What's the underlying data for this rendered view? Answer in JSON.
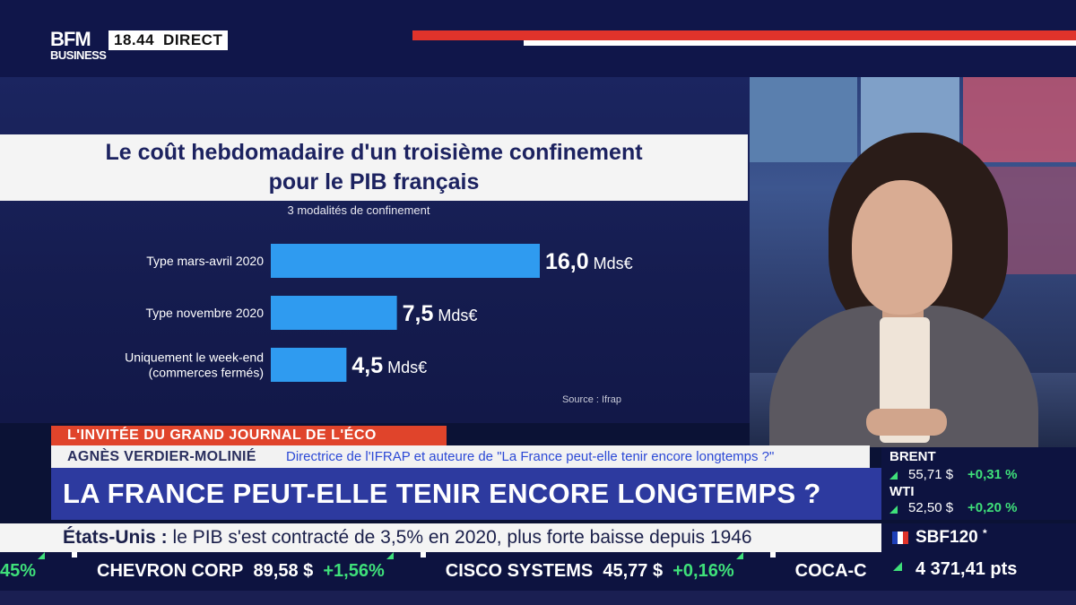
{
  "header": {
    "logo_top": "BFM",
    "logo_bottom": "BUSINESS",
    "time": "18.44",
    "live": "DIRECT"
  },
  "chart_data": {
    "type": "bar",
    "orientation": "horizontal",
    "title_line1": "Le coût hebdomadaire d'un troisième confinement",
    "title_line2": "pour le PIB français",
    "subtitle": "3 modalités de confinement",
    "source": "Source : Ifrap",
    "categories": [
      [
        "Type mars-avril 2020"
      ],
      [
        "Type novembre 2020"
      ],
      [
        "Uniquement le week-end",
        "(commerces fermés)"
      ]
    ],
    "values": [
      16.0,
      7.5,
      4.5
    ],
    "value_labels": [
      "16,0",
      "7,5",
      "4,5"
    ],
    "unit": "Mds€",
    "xlim": [
      0,
      16
    ],
    "bar_color": "#2f9bf0",
    "grid": false
  },
  "lower_third": {
    "program_tag": "L'INVITÉE DU GRAND JOURNAL DE L'ÉCO",
    "guest_name": "AGNÈS VERDIER-MOLINIÉ",
    "guest_role": "Directrice de l'IFRAP et auteure de \"La France peut-elle tenir encore longtemps ?\"",
    "headline": "LA FRANCE PEUT-ELLE TENIR ENCORE LONGTEMPS ?",
    "news_topic": "États-Unis :",
    "news_text": " le PIB s'est contracté de 3,5% en 2020, plus forte baisse depuis 1946"
  },
  "ticker": {
    "lead_change": "45%",
    "items": [
      {
        "name": "CHEVRON CORP",
        "price": "89,58 $",
        "change": "+1,56%"
      },
      {
        "name": "CISCO SYSTEMS",
        "price": "45,77 $",
        "change": "+0,16%"
      },
      {
        "name": "COCA-C",
        "price": "",
        "change": ""
      }
    ]
  },
  "markets": {
    "brent": {
      "label": "BRENT",
      "value": "55,71 $",
      "change": "+0,31 %"
    },
    "wti": {
      "label": "WTI",
      "value": "52,50 $",
      "change": "+0,20 %"
    },
    "index": {
      "name": "SBF120",
      "marker": "*",
      "value": "4 371,41 pts"
    }
  },
  "colors": {
    "accent_red": "#e0332b",
    "tag_orange": "#e0442b",
    "headline_blue": "#2d3a9f",
    "up_green": "#3fe07a"
  }
}
